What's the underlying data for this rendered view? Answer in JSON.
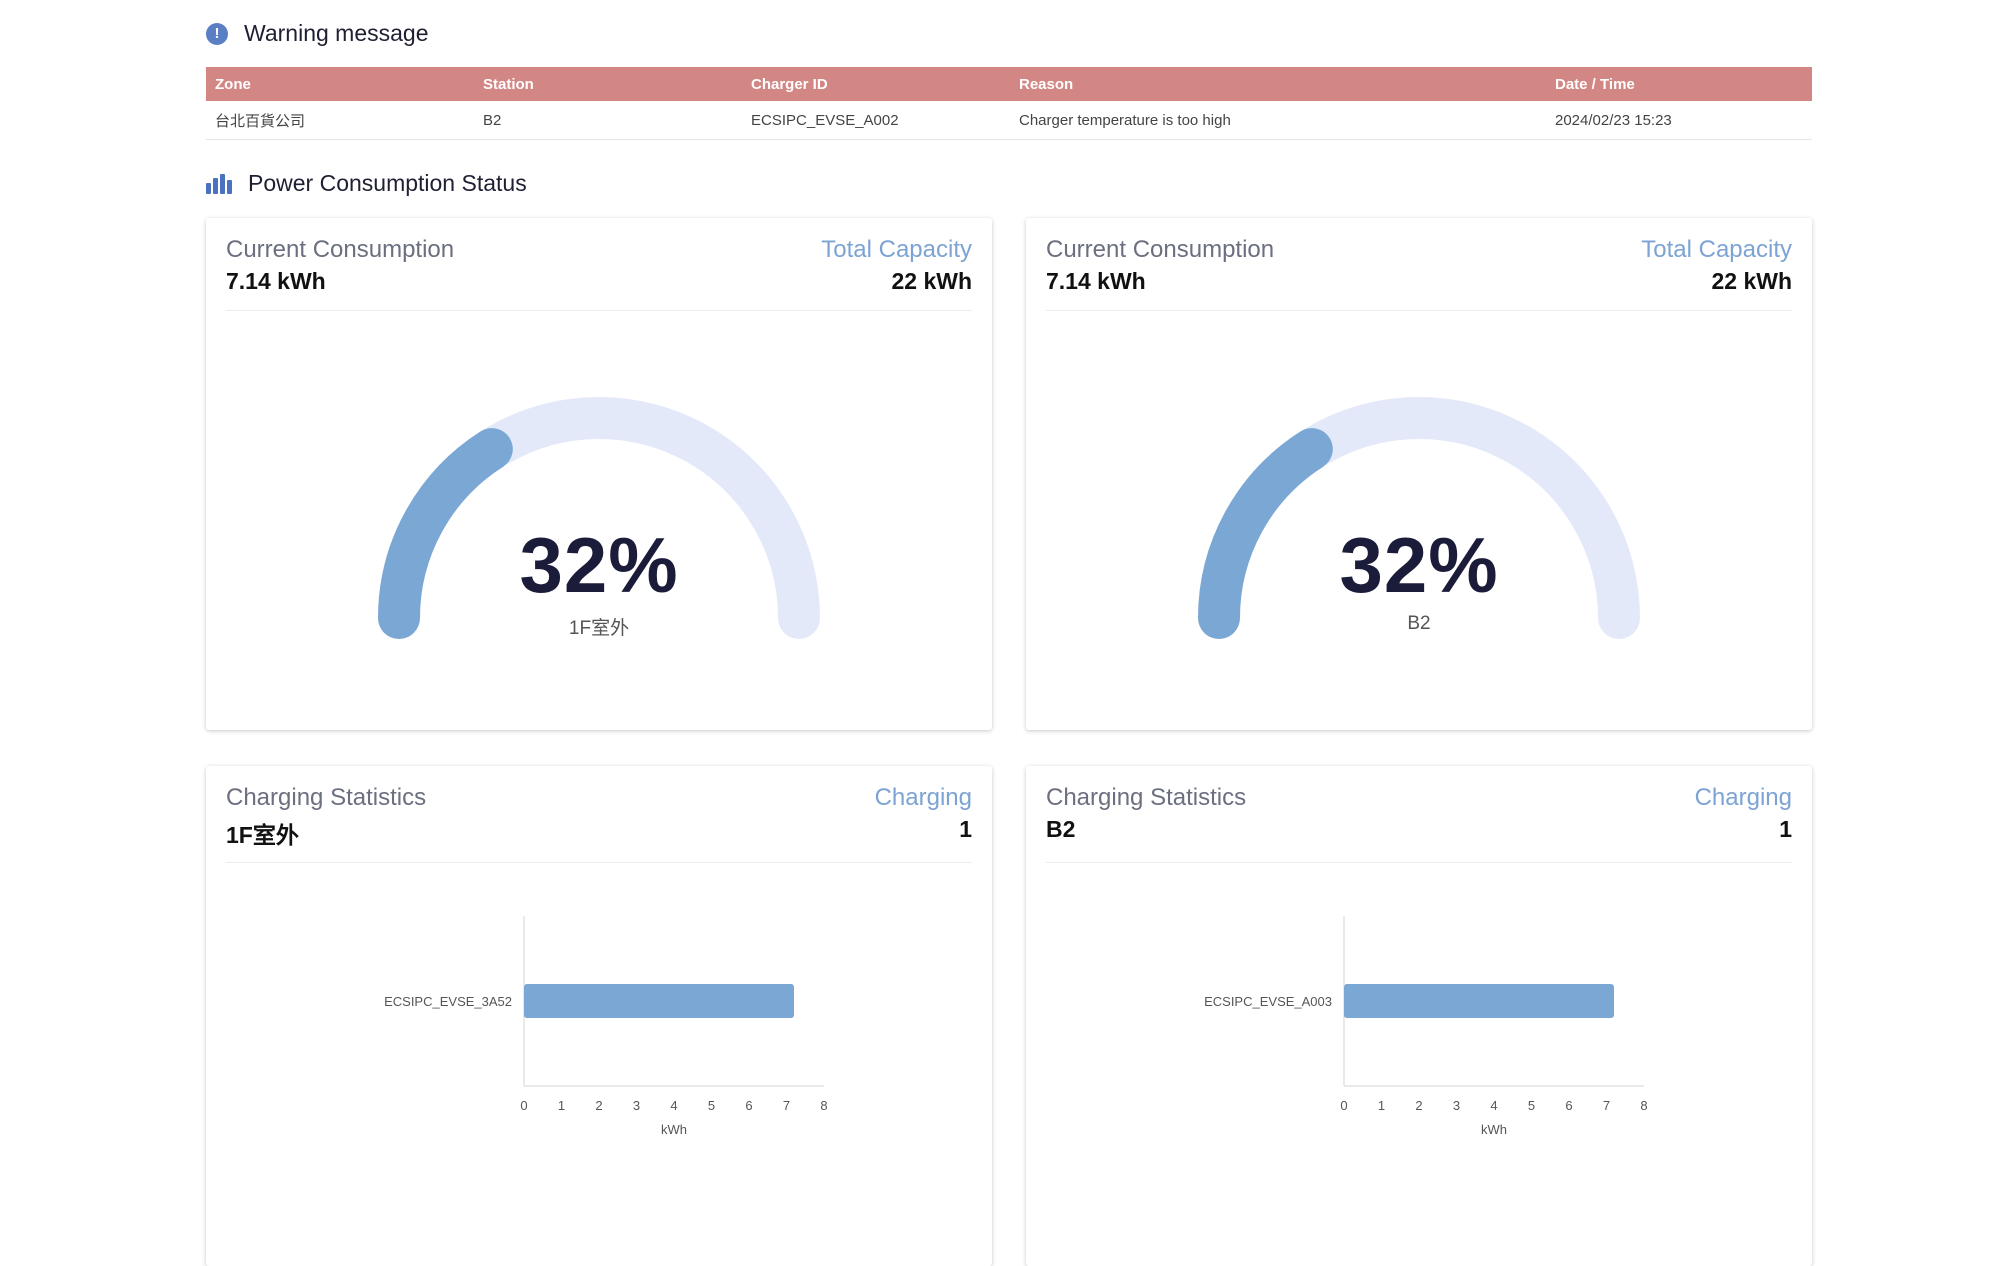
{
  "warning": {
    "title": "Warning message",
    "columns": [
      "Zone",
      "Station",
      "Charger ID",
      "Reason",
      "Date / Time"
    ],
    "rows": [
      [
        "台北百貨公司",
        "B2",
        "ECSIPC_EVSE_A002",
        "Charger temperature is too high",
        "2024/02/23 15:23"
      ]
    ]
  },
  "power": {
    "title": "Power Consumption Status",
    "cards": [
      {
        "current_label": "Current Consumption",
        "current_value": "7.14 kWh",
        "total_label": "Total Capacity",
        "total_value": "22 kWh",
        "percent": 32,
        "percent_text": "32%",
        "zone": "1F室外"
      },
      {
        "current_label": "Current Consumption",
        "current_value": "7.14 kWh",
        "total_label": "Total Capacity",
        "total_value": "22 kWh",
        "percent": 32,
        "percent_text": "32%",
        "zone": "B2"
      }
    ]
  },
  "stats": [
    {
      "title": "Charging Statistics",
      "zone": "1F室外",
      "charging_label": "Charging",
      "charging_value": "1"
    },
    {
      "title": "Charging Statistics",
      "zone": "B2",
      "charging_label": "Charging",
      "charging_value": "1"
    }
  ],
  "colors": {
    "accent": "#7ca3d3",
    "gauge_fill": "#7ba7d5",
    "gauge_track": "#e4e9fa",
    "table_header": "#d38785"
  },
  "chart_data": [
    {
      "type": "bar",
      "orientation": "horizontal",
      "categories": [
        "ECSIPC_EVSE_3A52"
      ],
      "values": [
        7.2
      ],
      "xlabel": "kWh",
      "xlim": [
        0,
        8
      ],
      "xticks": [
        "0",
        "1",
        "2",
        "3",
        "4",
        "5",
        "6",
        "7",
        "8"
      ]
    },
    {
      "type": "bar",
      "orientation": "horizontal",
      "categories": [
        "ECSIPC_EVSE_A003"
      ],
      "values": [
        7.2
      ],
      "xlabel": "kWh",
      "xlim": [
        0,
        8
      ],
      "xticks": [
        "0",
        "1",
        "2",
        "3",
        "4",
        "5",
        "6",
        "7",
        "8"
      ]
    }
  ]
}
